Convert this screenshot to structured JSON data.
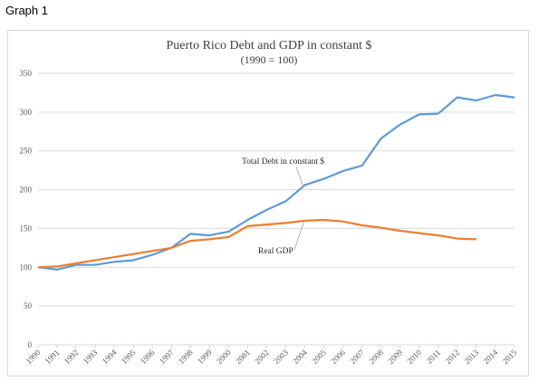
{
  "page": {
    "label": "Graph 1"
  },
  "colors": {
    "total_debt": "#5b9bd5",
    "real_gdp": "#ed7d31",
    "grid": "#d9d9d9"
  },
  "chart_data": {
    "type": "line",
    "title": "Puerto Rico Debt and GDP in constant $",
    "subtitle": "(1990 = 100)",
    "xlabel": "",
    "ylabel": "",
    "ylim": [
      0,
      350
    ],
    "yticks": [
      0,
      50,
      100,
      150,
      200,
      250,
      300,
      350
    ],
    "x": [
      "1990",
      "1991",
      "1992",
      "1993",
      "1994",
      "1995",
      "1996",
      "1997",
      "1998",
      "1999",
      "2000",
      "2001",
      "2002",
      "2003",
      "2004",
      "2005",
      "2006",
      "2007",
      "2008",
      "2009",
      "2010",
      "2011",
      "2012",
      "2013",
      "2014",
      "2015"
    ],
    "grid": true,
    "legend": "none",
    "series": [
      {
        "name": "Total Debt in constant $",
        "color": "#5b9bd5",
        "values": [
          100,
          97,
          103,
          103,
          107,
          109,
          116,
          125,
          143,
          141,
          146,
          161,
          174,
          185,
          206,
          214,
          224,
          231,
          266,
          284,
          297,
          298,
          319,
          315,
          322,
          319
        ]
      },
      {
        "name": "Real GDP",
        "color": "#ed7d31",
        "values": [
          100,
          101,
          105,
          109,
          113,
          117,
          121,
          125,
          134,
          136,
          139,
          153,
          155,
          157,
          160,
          161,
          159,
          154,
          151,
          147,
          144,
          141,
          137,
          136,
          null,
          null
        ]
      }
    ],
    "annotations": [
      {
        "text": "Total Debt in constant $",
        "series": "Total Debt in constant $"
      },
      {
        "text": "Real GDP",
        "series": "Real GDP"
      }
    ]
  }
}
